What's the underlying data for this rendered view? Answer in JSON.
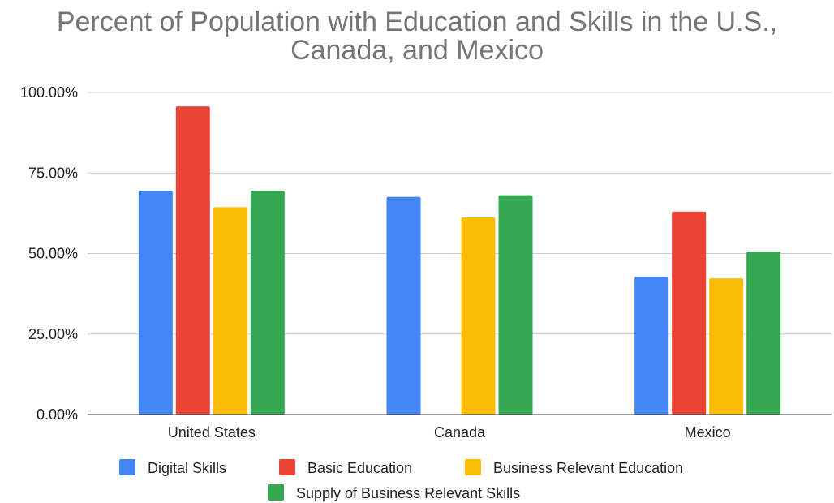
{
  "chart_data": {
    "type": "bar",
    "title_lines": [
      "Percent of Population with Education and Skills in the U.S.,",
      "Canada, and Mexico"
    ],
    "categories": [
      "United States",
      "Canada",
      "Mexico"
    ],
    "series": [
      {
        "name": "Digital Skills",
        "color": "#4285f4",
        "values": [
          69.5,
          67.6,
          42.8
        ]
      },
      {
        "name": "Basic Education",
        "color": "#ea4335",
        "values": [
          95.7,
          null,
          63.0
        ]
      },
      {
        "name": "Business Relevant Education",
        "color": "#fbbc04",
        "values": [
          64.4,
          61.2,
          42.3
        ]
      },
      {
        "name": "Supply of Business Relevant Skills",
        "color": "#34a853",
        "values": [
          69.5,
          68.1,
          50.6
        ]
      }
    ],
    "ylim": [
      0,
      100
    ],
    "yticks": [
      0,
      25,
      50,
      75,
      100
    ],
    "ytick_labels": [
      "0.00%",
      "25.00%",
      "50.00%",
      "75.00%",
      "100.00%"
    ],
    "grid": true,
    "legend_position": "bottom"
  }
}
